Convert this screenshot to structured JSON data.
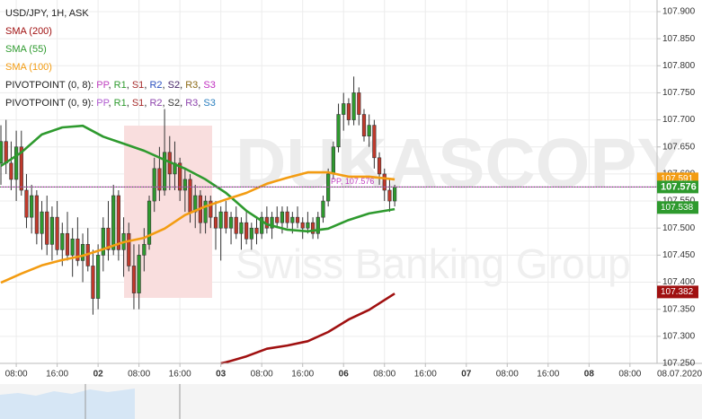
{
  "chart_data": {
    "type": "candlestick",
    "title": "USD/JPY, 1H, ASK",
    "xlim": [
      -0.18,
      128.3
    ],
    "ylim": [
      107.25,
      107.9215
    ],
    "grid": true,
    "xticks": [
      {
        "value": 3,
        "label": "08:00"
      },
      {
        "value": 11,
        "label": "16:00"
      },
      {
        "value": 19,
        "label": "02"
      },
      {
        "value": 27,
        "label": "08:00"
      },
      {
        "value": 35,
        "label": "16:00"
      },
      {
        "value": 43,
        "label": "03"
      },
      {
        "value": 51,
        "label": "08:00"
      },
      {
        "value": 59,
        "label": "16:00"
      },
      {
        "value": 67,
        "label": "06"
      },
      {
        "value": 75,
        "label": "08:00"
      },
      {
        "value": 83,
        "label": "16:00"
      },
      {
        "value": 91,
        "label": "07"
      },
      {
        "value": 99,
        "label": "08:00"
      },
      {
        "value": 107,
        "label": "16:00"
      },
      {
        "value": 115,
        "label": "08"
      },
      {
        "value": 123,
        "label": "08:00"
      }
    ],
    "axis_date": "08.07.2020",
    "yticks": [
      {
        "value": 107.25,
        "label": "107.250"
      },
      {
        "value": 107.3,
        "label": "107.300"
      },
      {
        "value": 107.35,
        "label": "107.350"
      },
      {
        "value": 107.4,
        "label": "107.400"
      },
      {
        "value": 107.45,
        "label": "107.450"
      },
      {
        "value": 107.5,
        "label": "107.500"
      },
      {
        "value": 107.55,
        "label": "107.550"
      },
      {
        "value": 107.6,
        "label": "107.600"
      },
      {
        "value": 107.65,
        "label": "107.650"
      },
      {
        "value": 107.7,
        "label": "107.700"
      },
      {
        "value": 107.75,
        "label": "107.750"
      },
      {
        "value": 107.8,
        "label": "107.800"
      },
      {
        "value": 107.85,
        "label": "107.850"
      },
      {
        "value": 107.9,
        "label": "107.900"
      }
    ],
    "up_color": "#2e9a2e",
    "down_color": "#c0392b",
    "x": [
      0,
      1,
      2,
      3,
      4,
      5,
      6,
      7,
      8,
      9,
      10,
      11,
      12,
      13,
      14,
      15,
      16,
      17,
      18,
      19,
      20,
      21,
      22,
      23,
      24,
      25,
      26,
      27,
      28,
      29,
      30,
      31,
      32,
      33,
      34,
      35,
      36,
      37,
      38,
      39,
      40,
      41,
      42,
      43,
      44,
      45,
      46,
      47,
      48,
      49,
      50,
      51,
      52,
      53,
      54,
      55,
      56,
      57,
      58,
      59,
      60,
      61,
      62,
      63,
      64,
      65,
      66,
      67,
      68,
      69,
      70,
      71,
      72,
      73,
      74,
      75,
      76,
      77
    ],
    "open": [
      107.62,
      107.66,
      107.62,
      107.59,
      107.65,
      107.57,
      107.52,
      107.56,
      107.49,
      107.53,
      107.47,
      107.52,
      107.46,
      107.49,
      107.45,
      107.48,
      107.44,
      107.47,
      107.43,
      107.37,
      107.45,
      107.5,
      107.46,
      107.56,
      107.46,
      107.49,
      107.43,
      107.38,
      107.45,
      107.47,
      107.55,
      107.61,
      107.57,
      107.64,
      107.6,
      107.62,
      107.57,
      107.59,
      107.53,
      107.56,
      107.51,
      107.55,
      107.52,
      107.5,
      107.53,
      107.5,
      107.52,
      107.49,
      107.51,
      107.48,
      107.5,
      107.49,
      107.52,
      107.5,
      107.52,
      107.51,
      107.53,
      107.51,
      107.52,
      107.51,
      107.5,
      107.51,
      107.49,
      107.52,
      107.55,
      107.6,
      107.65,
      107.71,
      107.73,
      107.7,
      107.75,
      107.71,
      107.67,
      107.69,
      107.63,
      107.6,
      107.57,
      107.55
    ],
    "high": [
      107.69,
      107.7,
      107.66,
      107.68,
      107.68,
      107.6,
      107.58,
      107.57,
      107.55,
      107.56,
      107.54,
      107.55,
      107.51,
      107.53,
      107.5,
      107.52,
      107.49,
      107.5,
      107.46,
      107.47,
      107.52,
      107.55,
      107.58,
      107.57,
      107.52,
      107.51,
      107.47,
      107.47,
      107.5,
      107.56,
      107.63,
      107.65,
      107.72,
      107.67,
      107.66,
      107.63,
      107.61,
      107.6,
      107.58,
      107.57,
      107.56,
      107.56,
      107.55,
      107.54,
      107.55,
      107.53,
      107.54,
      107.52,
      107.53,
      107.51,
      107.52,
      107.53,
      107.54,
      107.53,
      107.54,
      107.54,
      107.54,
      107.53,
      107.54,
      107.52,
      107.53,
      107.52,
      107.53,
      107.56,
      107.61,
      107.66,
      107.73,
      107.75,
      107.74,
      107.78,
      107.76,
      107.72,
      107.71,
      107.7,
      107.64,
      107.61,
      107.59,
      107.58
    ],
    "low": [
      107.58,
      107.6,
      107.57,
      107.55,
      107.56,
      107.5,
      107.49,
      107.47,
      107.46,
      107.45,
      107.44,
      107.45,
      107.43,
      107.44,
      107.41,
      107.43,
      107.4,
      107.42,
      107.34,
      107.35,
      107.42,
      107.44,
      107.45,
      107.44,
      107.41,
      107.42,
      107.35,
      107.35,
      107.42,
      107.46,
      107.53,
      107.55,
      107.56,
      107.57,
      107.57,
      107.55,
      107.53,
      107.51,
      107.5,
      107.49,
      107.49,
      107.5,
      107.46,
      107.44,
      107.49,
      107.47,
      107.48,
      107.46,
      107.47,
      107.46,
      107.47,
      107.48,
      107.49,
      107.48,
      107.5,
      107.49,
      107.5,
      107.49,
      107.5,
      107.48,
      107.49,
      107.48,
      107.48,
      107.51,
      107.54,
      107.59,
      107.64,
      107.68,
      107.69,
      107.69,
      107.69,
      107.66,
      107.65,
      107.61,
      107.58,
      107.55,
      107.53,
      107.54
    ],
    "close": [
      107.66,
      107.62,
      107.59,
      107.65,
      107.57,
      107.52,
      107.56,
      107.49,
      107.53,
      107.47,
      107.52,
      107.46,
      107.49,
      107.45,
      107.48,
      107.44,
      107.47,
      107.43,
      107.37,
      107.45,
      107.5,
      107.46,
      107.56,
      107.46,
      107.49,
      107.43,
      107.38,
      107.45,
      107.47,
      107.55,
      107.61,
      107.57,
      107.64,
      107.6,
      107.62,
      107.57,
      107.59,
      107.53,
      107.56,
      107.51,
      107.55,
      107.52,
      107.5,
      107.53,
      107.5,
      107.52,
      107.49,
      107.51,
      107.48,
      107.5,
      107.49,
      107.52,
      107.5,
      107.52,
      107.51,
      107.53,
      107.51,
      107.52,
      107.51,
      107.5,
      107.51,
      107.49,
      107.52,
      107.55,
      107.6,
      107.65,
      107.71,
      107.73,
      107.7,
      107.75,
      107.71,
      107.67,
      107.69,
      107.63,
      107.6,
      107.57,
      107.55,
      107.576
    ],
    "series": [
      {
        "name": "SMA (200)",
        "color": "#a01010",
        "x": [
          43,
          44,
          48,
          52,
          56,
          60,
          64,
          68,
          72,
          77
        ],
        "values": [
          107.25,
          107.252,
          107.263,
          107.277,
          107.283,
          107.291,
          107.308,
          107.331,
          107.349,
          107.379
        ],
        "last": 107.382
      },
      {
        "name": "SMA (55)",
        "color": "#2e9a2e",
        "x": [
          0,
          4,
          8,
          12,
          16,
          20,
          24,
          28,
          32,
          36,
          40,
          44,
          48,
          52,
          56,
          60,
          64,
          68,
          72,
          77
        ],
        "values": [
          107.615,
          107.64,
          107.673,
          107.686,
          107.689,
          107.669,
          107.656,
          107.643,
          107.626,
          107.61,
          107.59,
          107.565,
          107.532,
          107.507,
          107.497,
          107.494,
          107.499,
          107.515,
          107.527,
          107.535
        ],
        "last": 107.538
      },
      {
        "name": "SMA (100)",
        "color": "#f39c12",
        "x": [
          0,
          4,
          8,
          12,
          16,
          20,
          24,
          28,
          32,
          36,
          40,
          44,
          48,
          52,
          56,
          60,
          64,
          68,
          72,
          77
        ],
        "values": [
          107.399,
          107.416,
          107.431,
          107.441,
          107.449,
          107.461,
          107.474,
          107.482,
          107.499,
          107.524,
          107.54,
          107.553,
          107.565,
          107.582,
          107.593,
          107.603,
          107.603,
          107.595,
          107.595,
          107.59
        ],
        "last": 107.591
      }
    ],
    "pivot": {
      "label": "PP, 107.576",
      "value": 107.576,
      "color": "#c040c0"
    },
    "separator": ", ",
    "pivot_legends": [
      {
        "title": "PIVOTPOINT (0, 8): ",
        "items": [
          {
            "text": "PP",
            "color": "#c040c0"
          },
          {
            "text": "R1",
            "color": "#2e9a2e"
          },
          {
            "text": "S1",
            "color": "#a52a2a"
          },
          {
            "text": "R2",
            "color": "#2a4fbf"
          },
          {
            "text": "S2",
            "color": "#442266"
          },
          {
            "text": "R3",
            "color": "#8b6914"
          },
          {
            "text": "S3",
            "color": "#c02fc0"
          }
        ]
      },
      {
        "title": "PIVOTPOINT (0, 9): ",
        "items": [
          {
            "text": "PP",
            "color": "#b05ad0"
          },
          {
            "text": "R1",
            "color": "#2e9a2e"
          },
          {
            "text": "S1",
            "color": "#a52a2a"
          },
          {
            "text": "R2",
            "color": "#8e44ad"
          },
          {
            "text": "S2",
            "color": "#333333"
          },
          {
            "text": "R3",
            "color": "#8e44ad"
          },
          {
            "text": "S3",
            "color": "#2a7fbf"
          }
        ]
      }
    ],
    "watermark": {
      "brand": "DUKASCOPY",
      "tagline": "Swiss Banking Group"
    }
  }
}
